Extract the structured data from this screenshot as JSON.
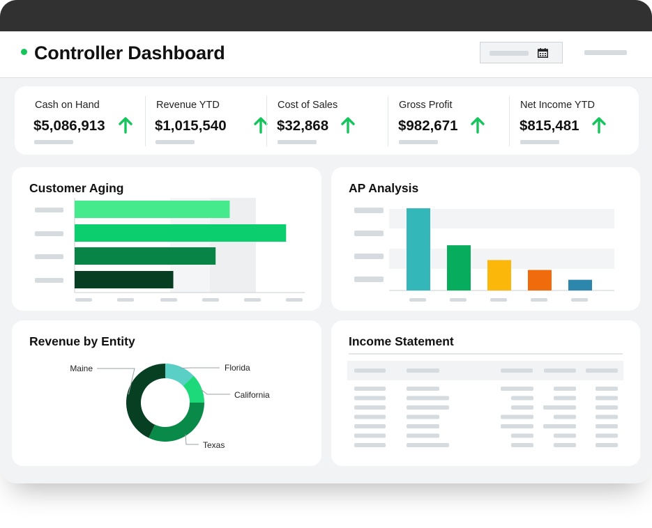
{
  "header": {
    "title": "Controller Dashboard"
  },
  "kpis": [
    {
      "label": "Cash on Hand",
      "value": "$5,086,913"
    },
    {
      "label": "Revenue YTD",
      "value": "$1,015,540"
    },
    {
      "label": "Cost of Sales",
      "value": "$32,868"
    },
    {
      "label": "Gross Profit",
      "value": "$982,671"
    },
    {
      "label": "Net Income YTD",
      "value": "$815,481"
    }
  ],
  "colors": {
    "up_arrow": "#16c45c",
    "status_dot": "#16c45c"
  },
  "icons": {
    "date_picker": "calendar-icon",
    "kpi_trend": "arrow-up-icon"
  },
  "customer_aging": {
    "title": "Customer Aging",
    "chart_data": {
      "type": "bar",
      "orientation": "horizontal",
      "values": [
        0.66,
        0.9,
        0.6,
        0.42
      ],
      "colors": [
        "#44ea8c",
        "#0bcf6e",
        "#088446",
        "#073d21"
      ]
    }
  },
  "ap_analysis": {
    "title": "AP Analysis",
    "chart_data": {
      "type": "bar",
      "values": [
        1.0,
        0.55,
        0.37,
        0.25,
        0.13
      ],
      "colors": [
        "#34b7b8",
        "#07ac5c",
        "#fbb80b",
        "#f06b0b",
        "#2d86ab"
      ]
    }
  },
  "revenue_by_entity": {
    "title": "Revenue by Entity",
    "chart_data": {
      "type": "pie",
      "donut": true,
      "slices": [
        {
          "label": "Florida",
          "value": 13,
          "color": "#5acfc6"
        },
        {
          "label": "California",
          "value": 12,
          "color": "#1ed97a"
        },
        {
          "label": "Texas",
          "value": 32,
          "color": "#0a8a48"
        },
        {
          "label": "Maine",
          "value": 43,
          "color": "#063f22"
        }
      ]
    }
  },
  "income_statement": {
    "title": "Income Statement"
  }
}
